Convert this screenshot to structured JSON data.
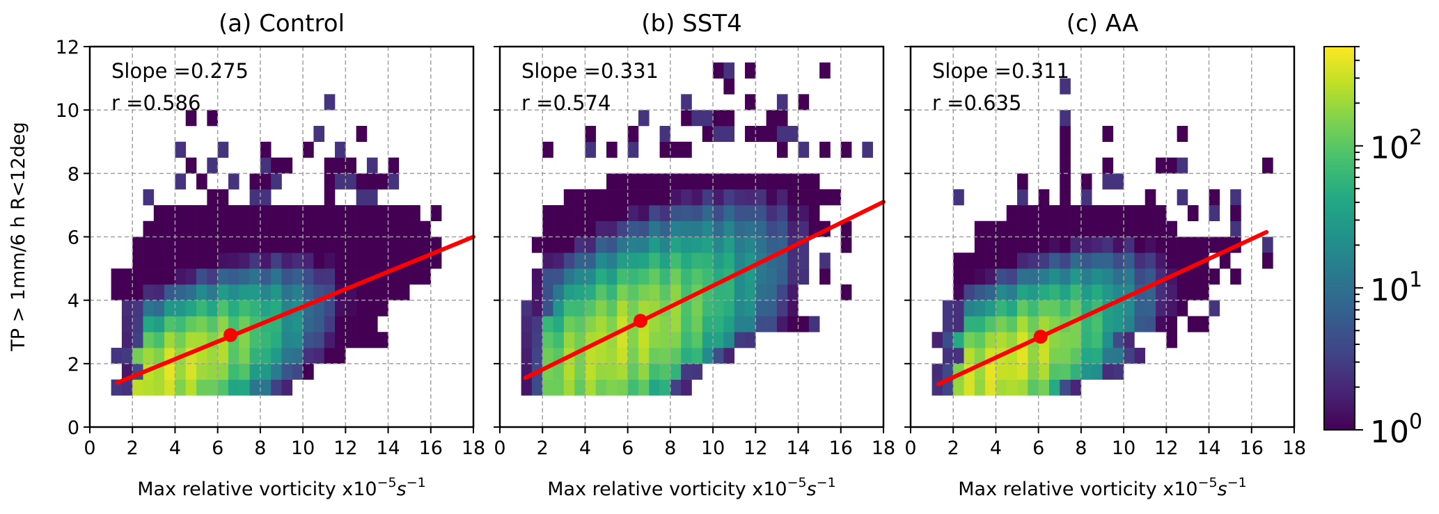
{
  "chart_data": {
    "type": "heatmap",
    "ylabel": "TP > 1mm/6 h R<12deg",
    "xlabel_main": "Max relative vorticity x10",
    "xlabel_exp1": "−5",
    "xlabel_unit": "s",
    "xlabel_exp2": "−1",
    "xlim": [
      0,
      18
    ],
    "ylim": [
      0,
      12
    ],
    "xticks": [
      "0",
      "2",
      "4",
      "6",
      "8",
      "10",
      "12",
      "14",
      "16",
      "18"
    ],
    "yticks": [
      "0",
      "2",
      "4",
      "6",
      "8",
      "10",
      "12"
    ],
    "bin_size": [
      0.5,
      0.5
    ],
    "grid": true,
    "colorbar": {
      "scale": "log",
      "colormap": "viridis",
      "range": [
        1,
        500
      ],
      "ticks": [
        {
          "value": 1,
          "base": "10",
          "exp": "0"
        },
        {
          "value": 10,
          "base": "10",
          "exp": "1"
        },
        {
          "value": 100,
          "base": "10",
          "exp": "2"
        }
      ]
    },
    "regression_color": "#ff0000",
    "panels": [
      {
        "title": "(a) Control",
        "slope_label": "Slope =0.275",
        "r_label": "r =0.586",
        "slope": 0.275,
        "r": 0.586,
        "line": {
          "x0": 1.3,
          "y0": 1.4,
          "x1": 18.0,
          "y1": 6.0
        },
        "mean_point": {
          "x": 6.6,
          "y": 2.9
        },
        "peak": {
          "x": 4.0,
          "y": 1.8,
          "max_count": 300,
          "sx": 3.6,
          "sy": 1.3,
          "tilt": 0.28
        },
        "rows": [
          {
            "y": 1.0,
            "x0": 1.0,
            "x1": 9.5
          },
          {
            "y": 1.5,
            "x0": 1.5,
            "x1": 10.5
          },
          {
            "y": 2.0,
            "x0": 1.0,
            "x1": 12.0
          },
          {
            "y": 2.5,
            "x0": 1.5,
            "x1": 14.0
          },
          {
            "y": 3.0,
            "x0": 1.5,
            "x1": 13.5
          },
          {
            "y": 3.5,
            "x0": 1.5,
            "x1": 14.0
          },
          {
            "y": 4.0,
            "x0": 1.0,
            "x1": 15.0
          },
          {
            "y": 4.5,
            "x0": 1.0,
            "x1": 16.0
          },
          {
            "y": 5.0,
            "x0": 2.0,
            "x1": 16.5
          },
          {
            "y": 5.5,
            "x0": 2.0,
            "x1": 16.5
          },
          {
            "y": 6.0,
            "x0": 2.5,
            "x1": 16.0
          },
          {
            "y": 6.5,
            "x0": 3.0,
            "x1": 15.5
          }
        ],
        "sparse": [
          [
            2.5,
            7.0
          ],
          [
            5.5,
            7.0
          ],
          [
            6.0,
            7.0
          ],
          [
            7.5,
            7.0
          ],
          [
            8.0,
            7.0
          ],
          [
            11.0,
            7.0
          ],
          [
            12.5,
            7.0
          ],
          [
            13.0,
            7.0
          ],
          [
            16.0,
            6.5
          ],
          [
            4.0,
            7.5
          ],
          [
            5.0,
            7.5
          ],
          [
            6.5,
            7.5
          ],
          [
            7.5,
            7.5
          ],
          [
            8.0,
            7.5
          ],
          [
            8.5,
            7.5
          ],
          [
            11.0,
            7.5
          ],
          [
            11.5,
            7.5
          ],
          [
            12.0,
            7.5
          ],
          [
            12.5,
            7.5
          ],
          [
            13.0,
            7.5
          ],
          [
            13.5,
            7.5
          ],
          [
            14.0,
            7.5
          ],
          [
            4.5,
            8.0
          ],
          [
            5.5,
            8.0
          ],
          [
            8.0,
            8.0
          ],
          [
            8.5,
            8.0
          ],
          [
            9.0,
            8.0
          ],
          [
            11.0,
            8.0
          ],
          [
            11.5,
            8.0
          ],
          [
            12.0,
            8.0
          ],
          [
            13.0,
            8.0
          ],
          [
            14.0,
            8.0
          ],
          [
            4.0,
            8.5
          ],
          [
            6.0,
            8.5
          ],
          [
            8.0,
            8.5
          ],
          [
            10.0,
            8.5
          ],
          [
            11.5,
            8.5
          ],
          [
            10.5,
            9.0
          ],
          [
            12.5,
            9.0
          ],
          [
            4.5,
            9.5
          ],
          [
            5.5,
            9.5
          ],
          [
            11.0,
            10.0
          ]
        ]
      },
      {
        "title": "(b) SST4",
        "slope_label": "Slope =0.331",
        "r_label": "r =0.574",
        "slope": 0.331,
        "r": 0.574,
        "line": {
          "x0": 1.2,
          "y0": 1.55,
          "x1": 18.0,
          "y1": 7.1
        },
        "mean_point": {
          "x": 6.6,
          "y": 3.35
        },
        "peak": {
          "x": 5.5,
          "y": 2.6,
          "max_count": 250,
          "sx": 4.2,
          "sy": 1.8,
          "tilt": 0.33
        },
        "rows": [
          {
            "y": 1.0,
            "x0": 1.0,
            "x1": 9.0
          },
          {
            "y": 1.5,
            "x0": 1.0,
            "x1": 9.5
          },
          {
            "y": 2.0,
            "x0": 1.0,
            "x1": 11.0
          },
          {
            "y": 2.5,
            "x0": 1.0,
            "x1": 12.0
          },
          {
            "y": 3.0,
            "x0": 1.0,
            "x1": 14.0
          },
          {
            "y": 3.5,
            "x0": 1.5,
            "x1": 14.0
          },
          {
            "y": 4.0,
            "x0": 1.5,
            "x1": 14.0
          },
          {
            "y": 4.5,
            "x0": 1.5,
            "x1": 14.5
          },
          {
            "y": 5.0,
            "x0": 2.0,
            "x1": 14.5
          },
          {
            "y": 5.5,
            "x0": 1.5,
            "x1": 14.5
          },
          {
            "y": 6.0,
            "x0": 2.0,
            "x1": 15.5
          },
          {
            "y": 6.5,
            "x0": 2.0,
            "x1": 15.0
          },
          {
            "y": 7.0,
            "x0": 3.0,
            "x1": 16.0
          },
          {
            "y": 7.5,
            "x0": 5.0,
            "x1": 15.0
          }
        ],
        "sparse": [
          [
            1.0,
            2.5
          ],
          [
            1.0,
            3.0
          ],
          [
            1.0,
            3.5
          ],
          [
            13.0,
            3.0
          ],
          [
            14.0,
            3.0
          ],
          [
            14.5,
            3.0
          ],
          [
            12.0,
            3.0
          ],
          [
            15.0,
            4.5
          ],
          [
            16.0,
            4.0
          ],
          [
            15.0,
            5.0
          ],
          [
            16.0,
            5.5
          ],
          [
            16.0,
            6.0
          ],
          [
            2.0,
            8.5
          ],
          [
            4.0,
            8.5
          ],
          [
            5.0,
            8.5
          ],
          [
            6.0,
            8.5
          ],
          [
            7.5,
            8.5
          ],
          [
            8.0,
            8.5
          ],
          [
            8.5,
            8.5
          ],
          [
            13.0,
            8.5
          ],
          [
            14.0,
            8.5
          ],
          [
            15.0,
            8.5
          ],
          [
            16.0,
            8.5
          ],
          [
            17.0,
            8.5
          ],
          [
            4.0,
            9.0
          ],
          [
            6.0,
            9.0
          ],
          [
            7.5,
            9.0
          ],
          [
            9.5,
            9.0
          ],
          [
            10.0,
            9.0
          ],
          [
            10.5,
            9.0
          ],
          [
            11.5,
            9.0
          ],
          [
            12.0,
            9.0
          ],
          [
            12.5,
            9.0
          ],
          [
            13.0,
            9.0
          ],
          [
            13.5,
            9.0
          ],
          [
            6.5,
            9.5
          ],
          [
            8.5,
            9.5
          ],
          [
            9.0,
            9.5
          ],
          [
            9.5,
            9.5
          ],
          [
            10.0,
            9.5
          ],
          [
            10.5,
            9.5
          ],
          [
            12.5,
            9.5
          ],
          [
            13.0,
            9.5
          ],
          [
            8.5,
            10.0
          ],
          [
            11.5,
            10.0
          ],
          [
            13.0,
            10.0
          ],
          [
            14.0,
            10.0
          ],
          [
            10.5,
            10.5
          ],
          [
            10.0,
            11.0
          ],
          [
            10.5,
            11.0
          ],
          [
            11.5,
            11.0
          ],
          [
            15.0,
            11.0
          ]
        ]
      },
      {
        "title": "(c) AA",
        "slope_label": "Slope =0.311",
        "r_label": "r =0.635",
        "slope": 0.311,
        "r": 0.635,
        "line": {
          "x0": 1.3,
          "y0": 1.35,
          "x1": 16.7,
          "y1": 6.15
        },
        "mean_point": {
          "x": 6.1,
          "y": 2.85
        },
        "peak": {
          "x": 4.3,
          "y": 1.9,
          "max_count": 330,
          "sx": 3.6,
          "sy": 1.4,
          "tilt": 0.31
        },
        "rows": [
          {
            "y": 1.0,
            "x0": 1.0,
            "x1": 8.0
          },
          {
            "y": 1.5,
            "x0": 1.0,
            "x1": 10.0
          },
          {
            "y": 2.0,
            "x0": 1.5,
            "x1": 11.0
          },
          {
            "y": 2.5,
            "x0": 1.0,
            "x1": 10.5
          },
          {
            "y": 3.0,
            "x0": 1.5,
            "x1": 12.5
          },
          {
            "y": 3.5,
            "x0": 1.5,
            "x1": 12.5
          },
          {
            "y": 4.0,
            "x0": 2.0,
            "x1": 14.0
          },
          {
            "y": 4.5,
            "x0": 2.0,
            "x1": 14.5
          },
          {
            "y": 5.0,
            "x0": 2.0,
            "x1": 14.0
          },
          {
            "y": 5.5,
            "x0": 3.0,
            "x1": 15.0
          },
          {
            "y": 6.0,
            "x0": 3.0,
            "x1": 12.5
          },
          {
            "y": 6.5,
            "x0": 4.5,
            "x1": 12.0
          }
        ],
        "sparse": [
          [
            1.0,
            2.5
          ],
          [
            12.0,
            2.5
          ],
          [
            13.0,
            3.0
          ],
          [
            13.5,
            3.0
          ],
          [
            12.5,
            3.5
          ],
          [
            14.0,
            3.5
          ],
          [
            14.0,
            4.5
          ],
          [
            15.0,
            4.5
          ],
          [
            14.5,
            5.0
          ],
          [
            15.0,
            5.5
          ],
          [
            16.5,
            5.5
          ],
          [
            16.5,
            5.0
          ],
          [
            15.0,
            6.0
          ],
          [
            2.0,
            7.0
          ],
          [
            5.0,
            7.0
          ],
          [
            6.0,
            7.0
          ],
          [
            7.0,
            7.0
          ],
          [
            8.0,
            7.0
          ],
          [
            9.0,
            7.5
          ],
          [
            11.0,
            7.0
          ],
          [
            12.5,
            7.0
          ],
          [
            14.0,
            7.0
          ],
          [
            15.0,
            7.0
          ],
          [
            5.0,
            7.5
          ],
          [
            7.0,
            7.5
          ],
          [
            8.0,
            7.5
          ],
          [
            9.5,
            7.5
          ],
          [
            13.0,
            6.5
          ],
          [
            14.0,
            6.5
          ],
          [
            15.0,
            6.5
          ],
          [
            7.0,
            8.0
          ],
          [
            9.0,
            8.0
          ],
          [
            11.5,
            8.0
          ],
          [
            12.0,
            8.0
          ],
          [
            12.5,
            8.0
          ],
          [
            16.5,
            8.0
          ],
          [
            7.0,
            8.5
          ],
          [
            9.0,
            9.0
          ],
          [
            12.5,
            9.0
          ],
          [
            7.0,
            9.0
          ],
          [
            7.0,
            9.5
          ],
          [
            7.0,
            10.5
          ]
        ]
      }
    ]
  }
}
